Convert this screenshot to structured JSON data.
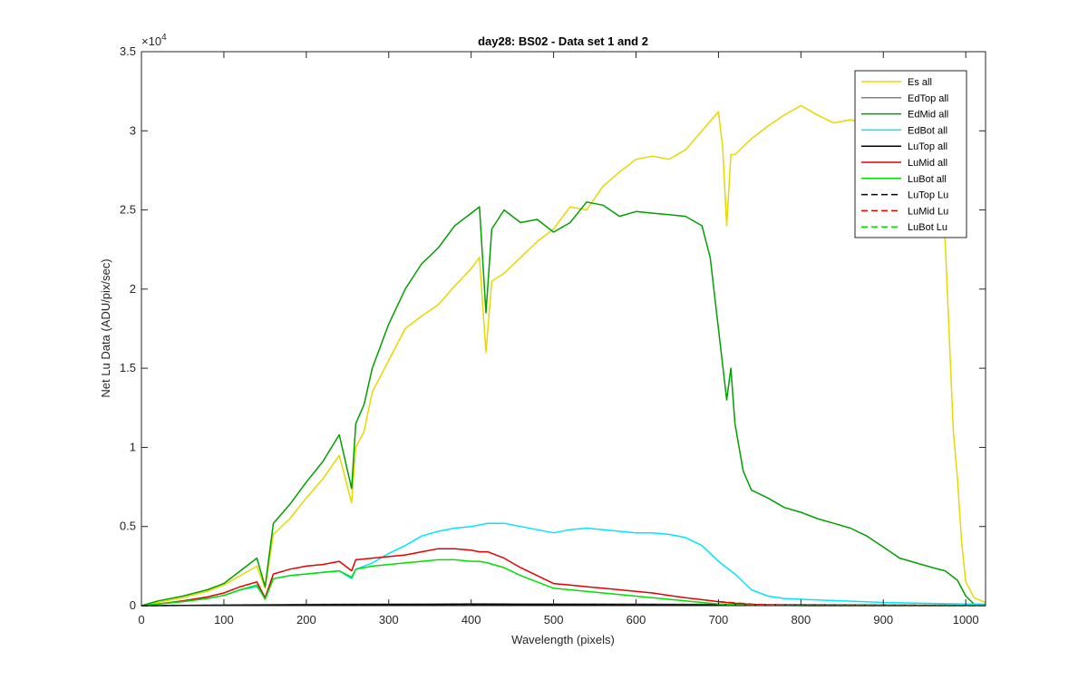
{
  "chart_data": {
    "type": "line",
    "title": "day28: BS02 - Data set 1 and 2",
    "xlabel": "Wavelength (pixels)",
    "ylabel": "Net Lu Data (ADU/pix/sec)",
    "y_exponent_label": "×10",
    "y_exponent_power": "4",
    "xlim": [
      0,
      1024
    ],
    "ylim": [
      0,
      35000
    ],
    "xticks": [
      0,
      100,
      200,
      300,
      400,
      500,
      600,
      700,
      800,
      900,
      1000
    ],
    "xtick_labels": [
      "0",
      "100",
      "200",
      "300",
      "400",
      "500",
      "600",
      "700",
      "800",
      "900",
      "1000"
    ],
    "yticks": [
      0,
      5000,
      10000,
      15000,
      20000,
      25000,
      30000,
      35000
    ],
    "ytick_labels": [
      "0",
      "0.5",
      "1",
      "1.5",
      "2",
      "2.5",
      "3",
      "3.5"
    ],
    "grid": false,
    "legend_position": "top-right",
    "series": [
      {
        "name": "Es  all",
        "color": "#e6d800",
        "dash": "solid",
        "x": [
          0,
          20,
          50,
          80,
          100,
          120,
          140,
          150,
          160,
          180,
          200,
          220,
          240,
          255,
          260,
          270,
          280,
          300,
          320,
          340,
          360,
          380,
          400,
          410,
          418,
          425,
          440,
          460,
          480,
          500,
          520,
          540,
          560,
          580,
          600,
          620,
          640,
          660,
          680,
          700,
          705,
          710,
          715,
          720,
          740,
          760,
          780,
          800,
          820,
          840,
          860,
          880,
          900,
          920,
          940,
          960,
          975,
          980,
          985,
          990,
          995,
          1000,
          1010,
          1024
        ],
        "y": [
          0,
          200,
          500,
          900,
          1300,
          1900,
          2500,
          1100,
          4500,
          5500,
          6800,
          8000,
          9500,
          6500,
          10000,
          11000,
          13500,
          15500,
          17500,
          18300,
          19000,
          20200,
          21300,
          22000,
          16000,
          20500,
          21000,
          22000,
          23000,
          23800,
          25200,
          25000,
          26500,
          27400,
          28200,
          28400,
          28200,
          28800,
          30000,
          31200,
          29000,
          24000,
          28500,
          28500,
          29500,
          30300,
          31000,
          31600,
          31000,
          30500,
          30700,
          30500,
          29400,
          30500,
          30700,
          27800,
          23000,
          17000,
          11000,
          8000,
          4000,
          1500,
          500,
          200
        ]
      },
      {
        "name": "EdTop  all",
        "color": "#808080",
        "dash": "solid",
        "x": [
          0,
          200,
          400,
          600,
          800,
          1024
        ],
        "y": [
          0,
          80,
          120,
          100,
          60,
          30
        ]
      },
      {
        "name": "EdMid  all",
        "color": "#00a000",
        "dash": "solid",
        "x": [
          0,
          20,
          50,
          80,
          100,
          120,
          140,
          150,
          160,
          180,
          200,
          220,
          240,
          255,
          260,
          270,
          280,
          300,
          320,
          340,
          360,
          380,
          400,
          410,
          418,
          425,
          440,
          460,
          480,
          500,
          520,
          540,
          560,
          580,
          600,
          620,
          640,
          660,
          680,
          690,
          700,
          710,
          715,
          720,
          730,
          740,
          760,
          780,
          800,
          820,
          840,
          860,
          880,
          900,
          920,
          940,
          960,
          975,
          990,
          1000,
          1010,
          1024
        ],
        "y": [
          0,
          300,
          600,
          1000,
          1400,
          2200,
          3000,
          1200,
          5200,
          6400,
          7800,
          9100,
          10800,
          7400,
          11500,
          12700,
          15000,
          17800,
          20000,
          21600,
          22600,
          24000,
          24800,
          25200,
          18500,
          23800,
          25000,
          24200,
          24400,
          23600,
          24200,
          25500,
          25300,
          24600,
          24900,
          24800,
          24700,
          24600,
          24000,
          22000,
          17500,
          13000,
          15000,
          11500,
          8500,
          7300,
          6800,
          6200,
          5900,
          5500,
          5200,
          4900,
          4400,
          3700,
          3000,
          2700,
          2400,
          2200,
          1600,
          600,
          100,
          50
        ]
      },
      {
        "name": "EdBot  all",
        "color": "#00e5ff",
        "dash": "solid",
        "x": [
          0,
          20,
          50,
          80,
          100,
          120,
          140,
          150,
          160,
          180,
          200,
          220,
          240,
          255,
          260,
          280,
          300,
          320,
          340,
          360,
          380,
          400,
          410,
          420,
          440,
          460,
          480,
          500,
          520,
          540,
          560,
          580,
          600,
          620,
          640,
          660,
          680,
          700,
          720,
          740,
          760,
          780,
          800,
          850,
          900,
          950,
          1000,
          1024
        ],
        "y": [
          0,
          100,
          250,
          450,
          650,
          1000,
          1200,
          500,
          1700,
          1900,
          2000,
          2100,
          2200,
          1700,
          2300,
          2700,
          3300,
          3800,
          4400,
          4700,
          4900,
          5000,
          5100,
          5200,
          5200,
          5000,
          4800,
          4600,
          4800,
          4900,
          4800,
          4700,
          4600,
          4600,
          4500,
          4300,
          3800,
          2800,
          2000,
          1000,
          600,
          450,
          400,
          300,
          200,
          150,
          100,
          100
        ]
      },
      {
        "name": "LuTop  all",
        "color": "#000000",
        "dash": "solid",
        "x": [
          0,
          200,
          400,
          600,
          800,
          1024
        ],
        "y": [
          0,
          50,
          80,
          60,
          30,
          10
        ]
      },
      {
        "name": "LuMid  all",
        "color": "#e60000",
        "dash": "solid",
        "x": [
          0,
          20,
          50,
          80,
          100,
          120,
          140,
          150,
          160,
          180,
          200,
          220,
          240,
          255,
          260,
          280,
          300,
          320,
          340,
          360,
          380,
          400,
          410,
          420,
          440,
          460,
          480,
          500,
          520,
          540,
          560,
          580,
          600,
          620,
          640,
          660,
          680,
          700,
          720,
          740,
          760,
          780,
          800,
          850,
          900,
          950,
          1000,
          1024
        ],
        "y": [
          0,
          100,
          300,
          550,
          800,
          1200,
          1500,
          500,
          2000,
          2300,
          2500,
          2600,
          2800,
          2200,
          2900,
          3000,
          3100,
          3200,
          3400,
          3600,
          3600,
          3500,
          3400,
          3400,
          3000,
          2400,
          1900,
          1400,
          1300,
          1200,
          1100,
          1000,
          900,
          800,
          650,
          500,
          380,
          250,
          150,
          80,
          40,
          20,
          10,
          5,
          5,
          5,
          5,
          5
        ]
      },
      {
        "name": "LuBot  all",
        "color": "#00e000",
        "dash": "solid",
        "x": [
          0,
          20,
          50,
          80,
          100,
          120,
          140,
          150,
          160,
          180,
          200,
          220,
          240,
          255,
          260,
          280,
          300,
          320,
          340,
          360,
          380,
          400,
          410,
          420,
          440,
          460,
          480,
          500,
          520,
          540,
          560,
          580,
          600,
          620,
          640,
          660,
          680,
          700,
          720,
          740,
          760,
          780,
          800,
          850,
          900,
          950,
          1000,
          1024
        ],
        "y": [
          0,
          100,
          250,
          450,
          650,
          1000,
          1300,
          400,
          1700,
          1900,
          2000,
          2100,
          2200,
          1800,
          2300,
          2500,
          2600,
          2700,
          2800,
          2900,
          2900,
          2800,
          2800,
          2700,
          2400,
          1900,
          1500,
          1100,
          1000,
          900,
          800,
          700,
          600,
          500,
          400,
          300,
          200,
          100,
          50,
          30,
          15,
          10,
          5,
          5,
          5,
          5,
          5,
          5
        ]
      },
      {
        "name": "LuTop  Lu",
        "color": "#000000",
        "dash": "dashed",
        "x": [
          0,
          200,
          400,
          600,
          800,
          1024
        ],
        "y": [
          0,
          50,
          80,
          60,
          30,
          10
        ]
      },
      {
        "name": "LuMid  Lu",
        "color": "#e60000",
        "dash": "dashed",
        "x": [
          700,
          750,
          800,
          850,
          900,
          950,
          1000,
          1024
        ],
        "y": [
          250,
          60,
          10,
          5,
          5,
          5,
          5,
          5
        ]
      },
      {
        "name": "LuBot  Lu",
        "color": "#00e000",
        "dash": "dashed",
        "x": [
          700,
          750,
          800,
          850,
          900,
          950,
          1000,
          1024
        ],
        "y": [
          100,
          20,
          5,
          5,
          5,
          5,
          5,
          5
        ]
      }
    ]
  }
}
